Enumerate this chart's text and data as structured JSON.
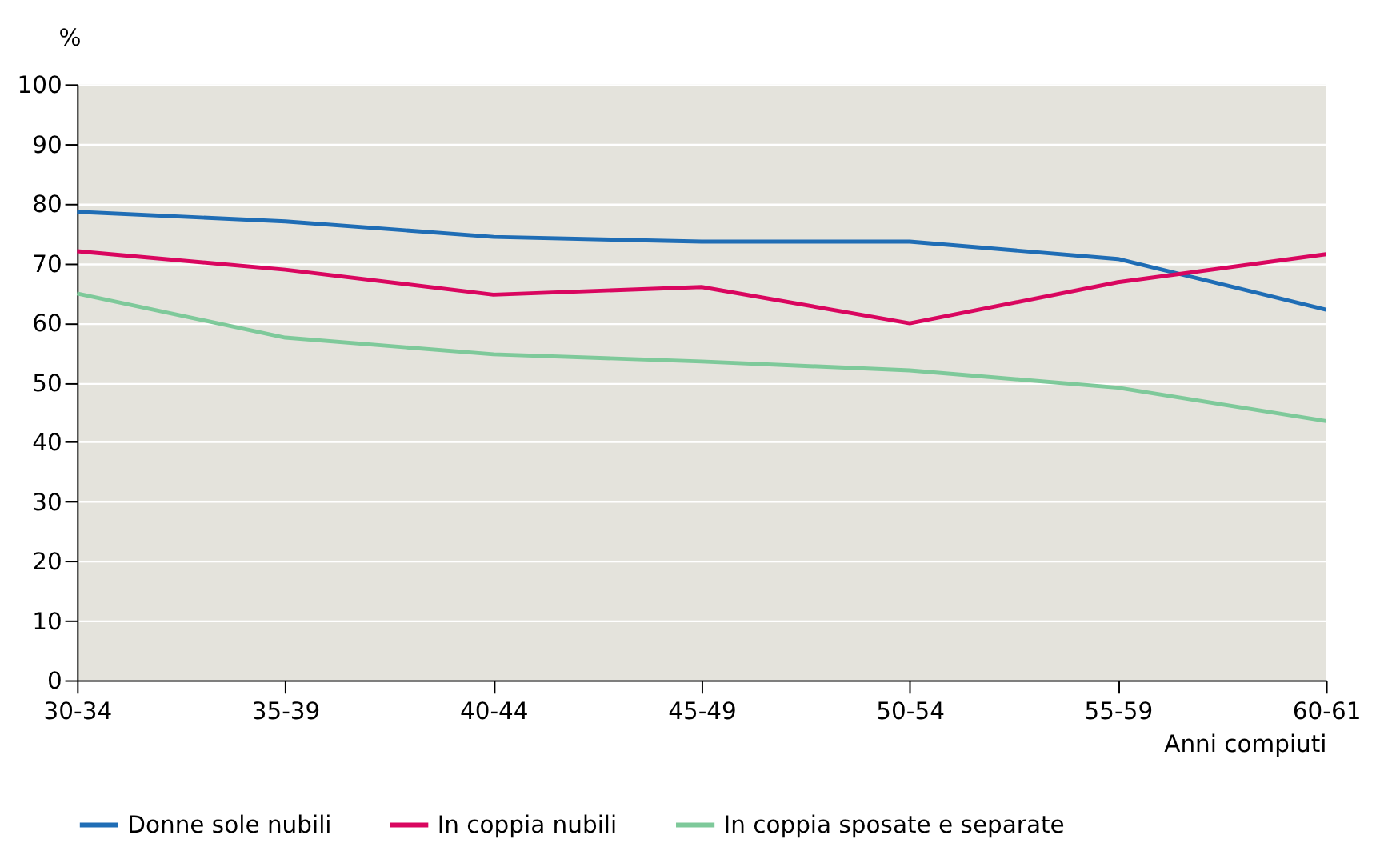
{
  "chart_data": {
    "type": "line",
    "xlabel": "Anni compiuti",
    "ylabel": "%",
    "categories": [
      "30-34",
      "35-39",
      "40-44",
      "45-49",
      "50-54",
      "55-59",
      "60-61"
    ],
    "series": [
      {
        "name": "Donne sole nubili",
        "color": "#1f6db5",
        "values": [
          78.6,
          77.0,
          74.4,
          73.6,
          73.6,
          70.7,
          62.2
        ]
      },
      {
        "name": "In coppia nubili",
        "color": "#d9065f",
        "values": [
          72.0,
          68.9,
          64.7,
          66.0,
          59.9,
          66.8,
          71.5
        ]
      },
      {
        "name": "In coppia sposate e separate",
        "color": "#7ec99a",
        "values": [
          64.9,
          57.5,
          54.7,
          53.5,
          52.0,
          49.1,
          43.5
        ]
      }
    ],
    "ylim": [
      0,
      100
    ],
    "yticks": [
      0,
      10,
      20,
      30,
      40,
      50,
      60,
      70,
      80,
      90,
      100
    ],
    "grid": "y",
    "legend": "bottom",
    "marker": "none",
    "line_style": "solid"
  }
}
